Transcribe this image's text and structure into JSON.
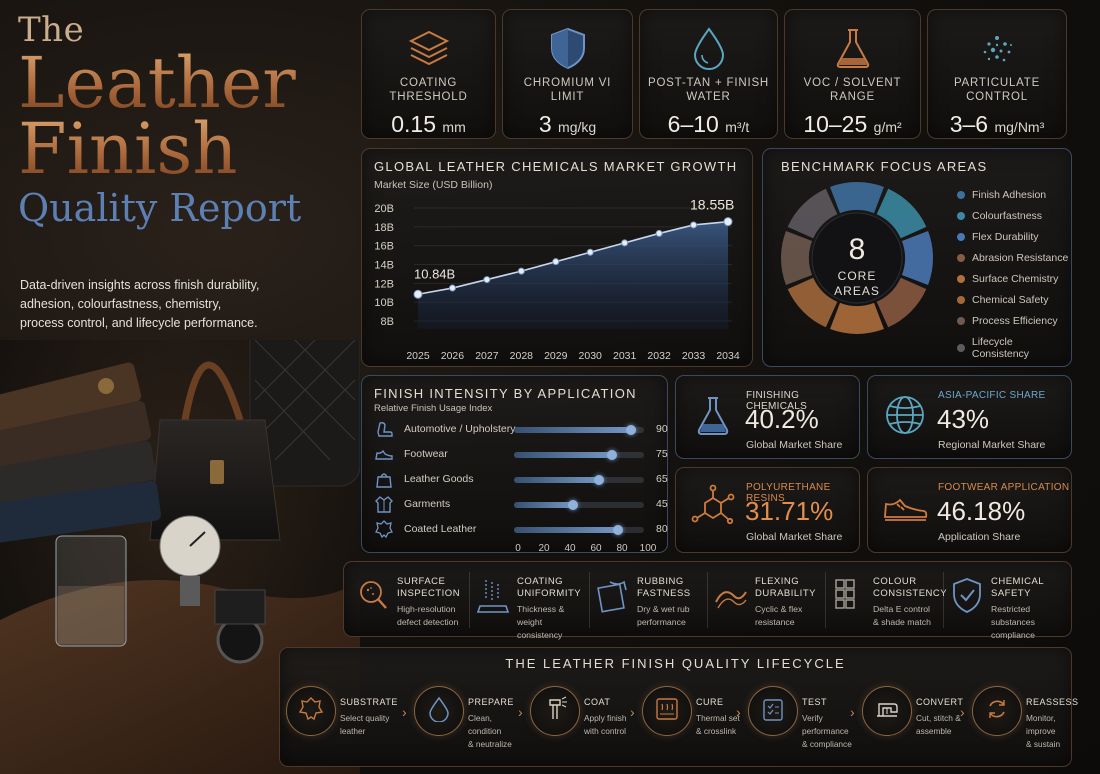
{
  "title": {
    "line1": "The",
    "line2": "Leather",
    "line3": "Finish",
    "line4": "Quality Report"
  },
  "intro": "Data-driven insights across finish durability, adhesion, colourfastness, chemistry, process control, and lifecycle performance.",
  "kpis": [
    {
      "icon": "layers-icon",
      "label": "COATING THRESHOLD",
      "value": "0.15",
      "unit": "mm"
    },
    {
      "icon": "shield-icon",
      "label": "CHROMIUM VI LIMIT",
      "value": "3",
      "unit": "mg/kg"
    },
    {
      "icon": "water-drop-icon",
      "label": "POST-TAN + FINISH WATER",
      "value": "6–10",
      "unit": "m³/t"
    },
    {
      "icon": "flask-icon",
      "label": "VOC / SOLVENT RANGE",
      "value": "10–25",
      "unit": "g/m²"
    },
    {
      "icon": "particles-icon",
      "label": "PARTICULATE CONTROL",
      "value": "3–6",
      "unit": "mg/Nm³"
    }
  ],
  "market": {
    "title": "GLOBAL LEATHER CHEMICALS MARKET GROWTH",
    "subtitle": "Market Size (USD Billion)",
    "start_label": "10.84B",
    "end_label": "18.55B"
  },
  "chart_data": {
    "type": "area",
    "title": "GLOBAL LEATHER CHEMICALS MARKET GROWTH",
    "ylabel": "Market Size (USD Billion)",
    "x": [
      "2025",
      "2026",
      "2027",
      "2028",
      "2029",
      "2030",
      "2031",
      "2032",
      "2033",
      "2034"
    ],
    "series": [
      {
        "values": [
          10.84,
          11.5,
          12.4,
          13.3,
          14.3,
          15.3,
          16.3,
          17.3,
          18.2,
          18.55
        ]
      }
    ],
    "yticks": [
      "8B",
      "10B",
      "12B",
      "14B",
      "16B",
      "18B",
      "20B"
    ],
    "ylim": [
      8,
      20
    ],
    "grid": true
  },
  "benchmark": {
    "title": "BENCHMARK FOCUS AREAS",
    "center_number": "8",
    "center_text_1": "CORE",
    "center_text_2": "AREAS",
    "areas": [
      {
        "label": "Finish Adhesion",
        "color": "#3d6fa0"
      },
      {
        "label": "Colourfastness",
        "color": "#3a8aa3"
      },
      {
        "label": "Flex Durability",
        "color": "#4a78b3"
      },
      {
        "label": "Abrasion Resistance",
        "color": "#8a5a42"
      },
      {
        "label": "Surface Chemistry",
        "color": "#b06f3c"
      },
      {
        "label": "Chemical Safety",
        "color": "#a4693a"
      },
      {
        "label": "Process Efficiency",
        "color": "#6e5a50"
      },
      {
        "label": "Lifecycle Consistency",
        "color": "#5e5a60"
      }
    ]
  },
  "intensity": {
    "title": "FINISH INTENSITY BY APPLICATION",
    "subtitle": "Relative Finish Usage Index",
    "rows": [
      {
        "icon": "car-seat-icon",
        "label": "Automotive / Upholstery",
        "value": 90
      },
      {
        "icon": "shoe-icon",
        "label": "Footwear",
        "value": 75
      },
      {
        "icon": "bag-icon",
        "label": "Leather Goods",
        "value": 65
      },
      {
        "icon": "jacket-icon",
        "label": "Garments",
        "value": 45
      },
      {
        "icon": "hide-icon",
        "label": "Coated Leather",
        "value": 80
      }
    ],
    "axis": [
      "0",
      "20",
      "40",
      "60",
      "80",
      "100"
    ]
  },
  "stats": [
    {
      "icon": "beaker-icon",
      "label": "FINISHING CHEMICALS",
      "value": "40.2%",
      "caption": "Global Market Share",
      "label_color": "#ddd6cb",
      "value_color": "#efe9df"
    },
    {
      "icon": "globe-icon",
      "label": "ASIA-PACIFIC SHARE",
      "value": "43%",
      "caption": "Regional Market Share",
      "label_color": "#6fa6c9",
      "value_color": "#efe9df"
    },
    {
      "icon": "molecule-icon",
      "label": "POLYURETHANE RESINS",
      "value": "31.71%",
      "caption": "Global Market Share",
      "label_color": "#d78a4c",
      "value_color": "#e28e4f"
    },
    {
      "icon": "sneaker-icon",
      "label": "FOOTWEAR APPLICATION",
      "value": "46.18%",
      "caption": "Application Share",
      "label_color": "#d78a4c",
      "value_color": "#efe9df"
    }
  ],
  "benchmarks": [
    {
      "icon": "magnifier-icon",
      "title1": "SURFACE",
      "title2": "INSPECTION",
      "desc1": "High-resolution",
      "desc2": "defect detection"
    },
    {
      "icon": "coating-icon",
      "title1": "COATING",
      "title2": "UNIFORMITY",
      "desc1": "Thickness & weight",
      "desc2": "consistency"
    },
    {
      "icon": "rub-icon",
      "title1": "RUBBING",
      "title2": "FASTNESS",
      "desc1": "Dry & wet rub",
      "desc2": "performance"
    },
    {
      "icon": "flex-icon",
      "title1": "FLEXING",
      "title2": "DURABILITY",
      "desc1": "Cyclic & flex",
      "desc2": "resistance"
    },
    {
      "icon": "swatch-icon",
      "title1": "COLOUR",
      "title2": "CONSISTENCY",
      "desc1": "Delta E control",
      "desc2": "& shade match"
    },
    {
      "icon": "check-shield-icon",
      "title1": "CHEMICAL",
      "title2": "SAFETY",
      "desc1": "Restricted substances",
      "desc2": "compliance"
    }
  ],
  "lifecycle": {
    "title": "THE LEATHER FINISH QUALITY LIFECYCLE",
    "steps": [
      {
        "icon": "hide-outline-icon",
        "title": "SUBSTRATE",
        "desc1": "Select quality",
        "desc2": "leather"
      },
      {
        "icon": "drop-outline-icon",
        "title": "PREPARE",
        "desc1": "Clean, condition",
        "desc2": "& neutralize"
      },
      {
        "icon": "spray-icon",
        "title": "COAT",
        "desc1": "Apply finish",
        "desc2": "with control"
      },
      {
        "icon": "oven-icon",
        "title": "CURE",
        "desc1": "Thermal set",
        "desc2": "& crosslink"
      },
      {
        "icon": "clipboard-icon",
        "title": "TEST",
        "desc1": "Verify performance",
        "desc2": "& compliance"
      },
      {
        "icon": "sewing-machine-icon",
        "title": "CONVERT",
        "desc1": "Cut, stitch &",
        "desc2": "assemble"
      },
      {
        "icon": "cycle-icon",
        "title": "REASSESS",
        "desc1": "Monitor, improve",
        "desc2": "& sustain"
      }
    ]
  }
}
